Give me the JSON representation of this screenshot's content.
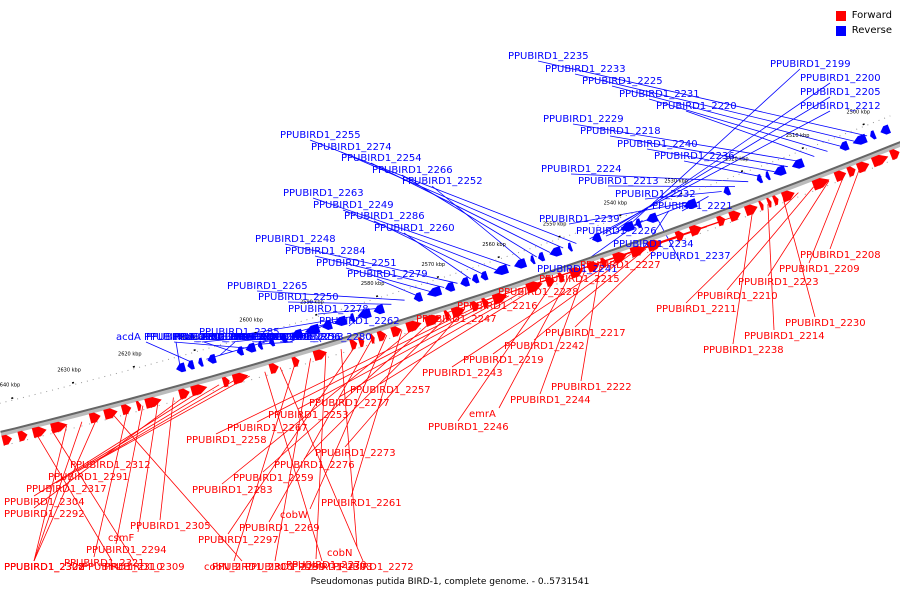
{
  "legend": {
    "forward_label": "Forward",
    "reverse_label": "Reverse",
    "forward_color": "#ff0000",
    "reverse_color": "#0000ff"
  },
  "title": "Pseudomonas putida BIRD-1, complete genome. - 0..5731541",
  "axis_ticks": [
    "2500 kbp",
    "2510 kbp",
    "2520 kbp",
    "2530 kbp",
    "2540 kbp",
    "2550 kbp",
    "2560 kbp",
    "2570 kbp",
    "2580 kbp",
    "2590 kbp",
    "2600 kbp",
    "2610 kbp",
    "2620 kbp",
    "2630 kbp",
    "2640 kbp"
  ],
  "reverse_genes": [
    "PPUBIRD1_2235",
    "PPUBIRD1_2233",
    "PPUBIRD1_2225",
    "PPUBIRD1_2231",
    "PPUBIRD1_2220",
    "PPUBIRD1_2229",
    "PPUBIRD1_2218",
    "PPUBIRD1_2240",
    "PPUBIRD1_2236",
    "PPUBIRD1_2224",
    "PPUBIRD1_2213",
    "PPUBIRD1_2232",
    "PPUBIRD1_2221",
    "PPUBIRD1_2239",
    "PPUBIRD1_2226",
    "PPUBIRD1_2234",
    "PPUBIRD1_2237",
    "PPUBIRD1_2241",
    "PPUBIRD1_2199",
    "PPUBIRD1_2200",
    "PPUBIRD1_2205",
    "PPUBIRD1_2212",
    "PPUBIRD1_2255",
    "PPUBIRD1_2274",
    "PPUBIRD1_2254",
    "PPUBIRD1_2266",
    "PPUBIRD1_2252",
    "PPUBIRD1_2263",
    "PPUBIRD1_2249",
    "PPUBIRD1_2286",
    "PPUBIRD1_2260",
    "PPUBIRD1_2248",
    "PPUBIRD1_2284",
    "PPUBIRD1_2251",
    "PPUBIRD1_2279",
    "PPUBIRD1_2265",
    "PPUBIRD1_2250",
    "PPUBIRD1_2278",
    "PPUBIRD1_2262",
    "PPUBIRD1_2285",
    "PPUBIRD1_2271",
    "PPUBIRD1_2256",
    "PPUBIRD1_2280",
    "PPUBIRD1_2268",
    "PPUBIRD1_2296",
    "PPUBIRD1_2275",
    "PPUBIRD1_2293",
    "PPUBIRD1_2282",
    "PPUBIRD1_2295",
    "PPUBIRD1_2287",
    "PPUBIRD1_2298",
    "acdA",
    "PPUBIRD1_2301"
  ],
  "forward_genes": [
    "PPUBIRD1_2208",
    "PPUBIRD1_2209",
    "PPUBIRD1_2223",
    "PPUBIRD1_2210",
    "PPUBIRD1_2211",
    "PPUBIRD1_2230",
    "PPUBIRD1_2214",
    "PPUBIRD1_2238",
    "PPUBIRD1_2227",
    "PPUBIRD1_2215",
    "PPUBIRD1_2228",
    "PPUBIRD1_2216",
    "PPUBIRD1_2247",
    "PPUBIRD1_2217",
    "PPUBIRD1_2242",
    "PPUBIRD1_2219",
    "PPUBIRD1_2243",
    "PPUBIRD1_2222",
    "PPUBIRD1_2244",
    "emrA",
    "PPUBIRD1_2246",
    "PPUBIRD1_2257",
    "PPUBIRD1_2277",
    "PPUBIRD1_2253",
    "PPUBIRD1_2267",
    "PPUBIRD1_2258",
    "PPUBIRD1_2273",
    "PPUBIRD1_2276",
    "PPUBIRD1_2259",
    "PPUBIRD1_2283",
    "PPUBIRD1_2261",
    "cobW",
    "PPUBIRD1_2269",
    "PPUBIRD1_2297",
    "cobN",
    "PPUBIRD1_2270",
    "PPUBIRD1_2299",
    "cobN_2",
    "PPUBIRD1_2272",
    "PPUBIRD1_2303",
    "PPUBIRD1_2312",
    "PPUBIRD1_2291",
    "PPUBIRD1_2317",
    "PPUBIRD1_2304",
    "PPUBIRD1_2292",
    "PPUBIRD1_2305",
    "csmF",
    "PPUBIRD1_2294",
    "PPUBIRD1_2321",
    "PPUBIRD1_2306",
    "PPUBIRD1_2322",
    "PPUBIRD1_2307",
    "PPUBIRD1_2308",
    "PPUBIRD1_2309",
    "PPUBIRD1_2310"
  ]
}
